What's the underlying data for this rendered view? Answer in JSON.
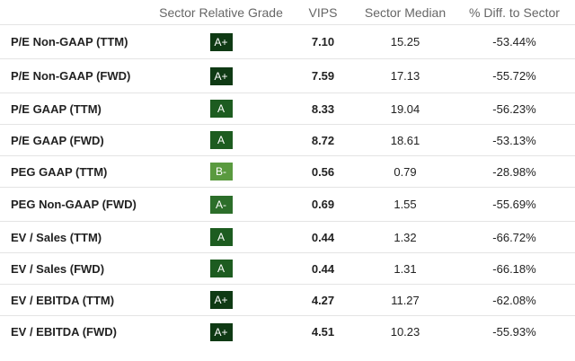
{
  "table": {
    "headers": {
      "metric": "",
      "grade": "Sector Relative Grade",
      "vips": "VIPS",
      "median": "Sector Median",
      "diff": "% Diff. to Sector"
    },
    "rows": [
      {
        "metric": "P/E Non-GAAP (TTM)",
        "grade": "A+",
        "grade_color": "#0f3a14",
        "vips": "7.10",
        "median": "15.25",
        "diff": "-53.44%"
      },
      {
        "metric": "P/E Non-GAAP (FWD)",
        "grade": "A+",
        "grade_color": "#0f3a14",
        "vips": "7.59",
        "median": "17.13",
        "diff": "-55.72%"
      },
      {
        "metric": "P/E GAAP (TTM)",
        "grade": "A",
        "grade_color": "#1d5c20",
        "vips": "8.33",
        "median": "19.04",
        "diff": "-56.23%"
      },
      {
        "metric": "P/E GAAP (FWD)",
        "grade": "A",
        "grade_color": "#1d5c20",
        "vips": "8.72",
        "median": "18.61",
        "diff": "-53.13%"
      },
      {
        "metric": "PEG GAAP (TTM)",
        "grade": "B-",
        "grade_color": "#5a9a3f",
        "vips": "0.56",
        "median": "0.79",
        "diff": "-28.98%"
      },
      {
        "metric": "PEG Non-GAAP (FWD)",
        "grade": "A-",
        "grade_color": "#2c6e2a",
        "vips": "0.69",
        "median": "1.55",
        "diff": "-55.69%"
      },
      {
        "metric": "EV / Sales (TTM)",
        "grade": "A",
        "grade_color": "#1d5c20",
        "vips": "0.44",
        "median": "1.32",
        "diff": "-66.72%"
      },
      {
        "metric": "EV / Sales (FWD)",
        "grade": "A",
        "grade_color": "#1d5c20",
        "vips": "0.44",
        "median": "1.31",
        "diff": "-66.18%"
      },
      {
        "metric": "EV / EBITDA (TTM)",
        "grade": "A+",
        "grade_color": "#0f3a14",
        "vips": "4.27",
        "median": "11.27",
        "diff": "-62.08%"
      },
      {
        "metric": "EV / EBITDA (FWD)",
        "grade": "A+",
        "grade_color": "#0f3a14",
        "vips": "4.51",
        "median": "10.23",
        "diff": "-55.93%"
      }
    ]
  }
}
